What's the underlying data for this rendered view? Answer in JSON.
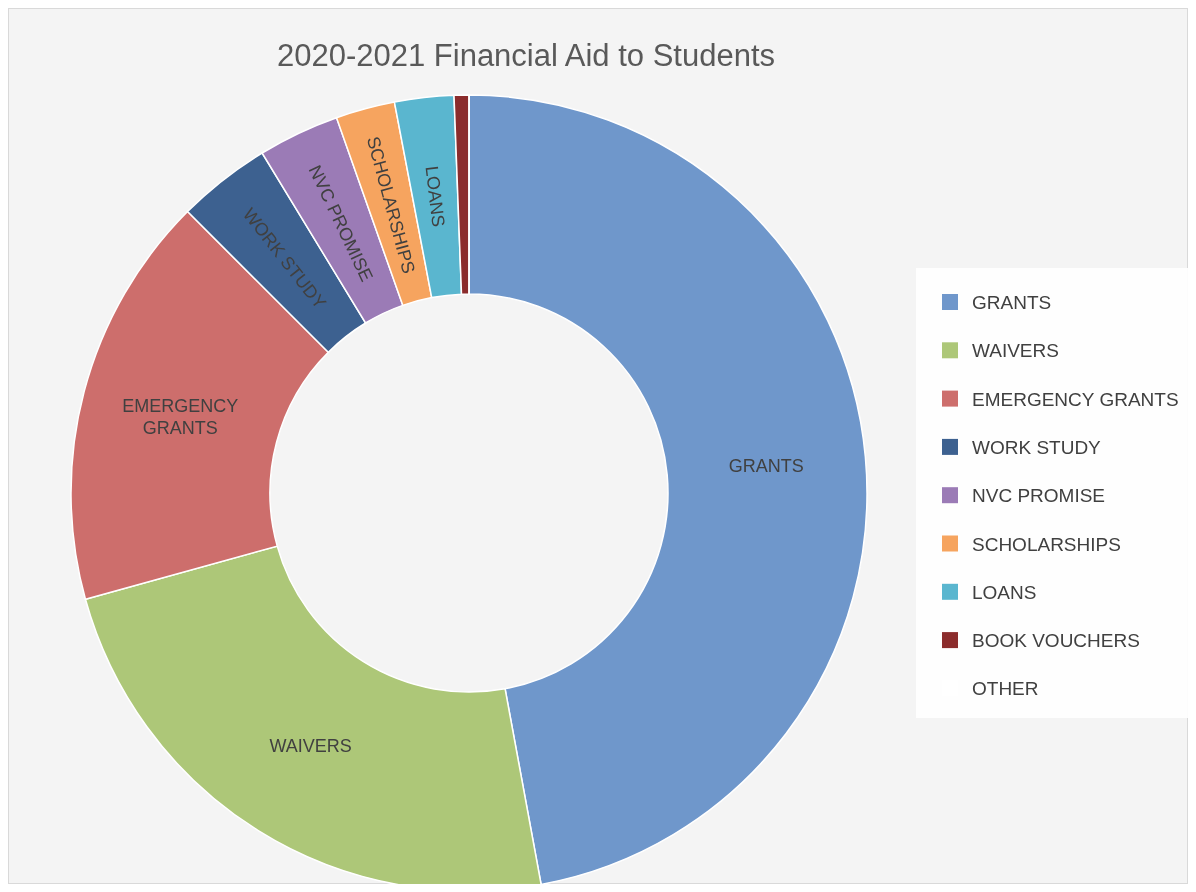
{
  "chart_data": {
    "type": "donut",
    "title": "2020-2021 Financial Aid to Students",
    "categories": [
      "GRANTS",
      "WAIVERS",
      "EMERGENCY GRANTS",
      "WORK STUDY",
      "NVC PROMISE",
      "SCHOLARSHIPS",
      "LOANS",
      "BOOK VOUCHERS",
      "OTHER"
    ],
    "values": [
      47.1,
      23.6,
      16.8,
      3.8,
      3.3,
      2.4,
      2.4,
      0.6,
      0
    ],
    "colors": [
      "#6f97cb",
      "#adc778",
      "#cd6e6c",
      "#3d6190",
      "#9b7bb6",
      "#f6a45f",
      "#5ab6cf",
      "#8b2c2c",
      "#ffffff"
    ],
    "legend": "right"
  }
}
